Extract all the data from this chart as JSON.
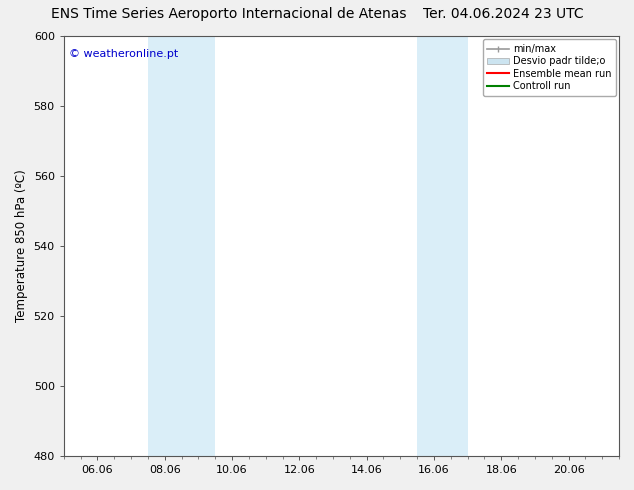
{
  "title_left": "ENS Time Series Aeroporto Internacional de Atenas",
  "title_right": "Ter. 04.06.2024 23 UTC",
  "ylabel": "Temperature 850 hPa (ºC)",
  "watermark": "© weatheronline.pt",
  "watermark_color": "#0000cc",
  "ylim": [
    480,
    600
  ],
  "yticks": [
    480,
    500,
    520,
    540,
    560,
    580,
    600
  ],
  "xlim": [
    0,
    16.5
  ],
  "xtick_labels": [
    "06.06",
    "08.06",
    "10.06",
    "12.06",
    "14.06",
    "16.06",
    "18.06",
    "20.06"
  ],
  "xtick_positions": [
    1.0,
    3.0,
    5.0,
    7.0,
    9.0,
    11.0,
    13.0,
    15.0
  ],
  "shaded_regions": [
    {
      "xmin": 2.5,
      "xmax": 4.5,
      "color": "#daeef8"
    },
    {
      "xmin": 10.5,
      "xmax": 12.0,
      "color": "#daeef8"
    }
  ],
  "legend_items": [
    {
      "label": "min/max",
      "color": "#aaaaaa"
    },
    {
      "label": "Desvio padr tilde;o",
      "color": "#cce4f0"
    },
    {
      "label": "Ensemble mean run",
      "color": "#ff0000"
    },
    {
      "label": "Controll run",
      "color": "#008000"
    }
  ],
  "fig_bg": "#f0f0f0",
  "plot_bg": "#ffffff",
  "spine_color": "#555555",
  "title_fontsize": 10,
  "tick_fontsize": 8,
  "label_fontsize": 8.5
}
